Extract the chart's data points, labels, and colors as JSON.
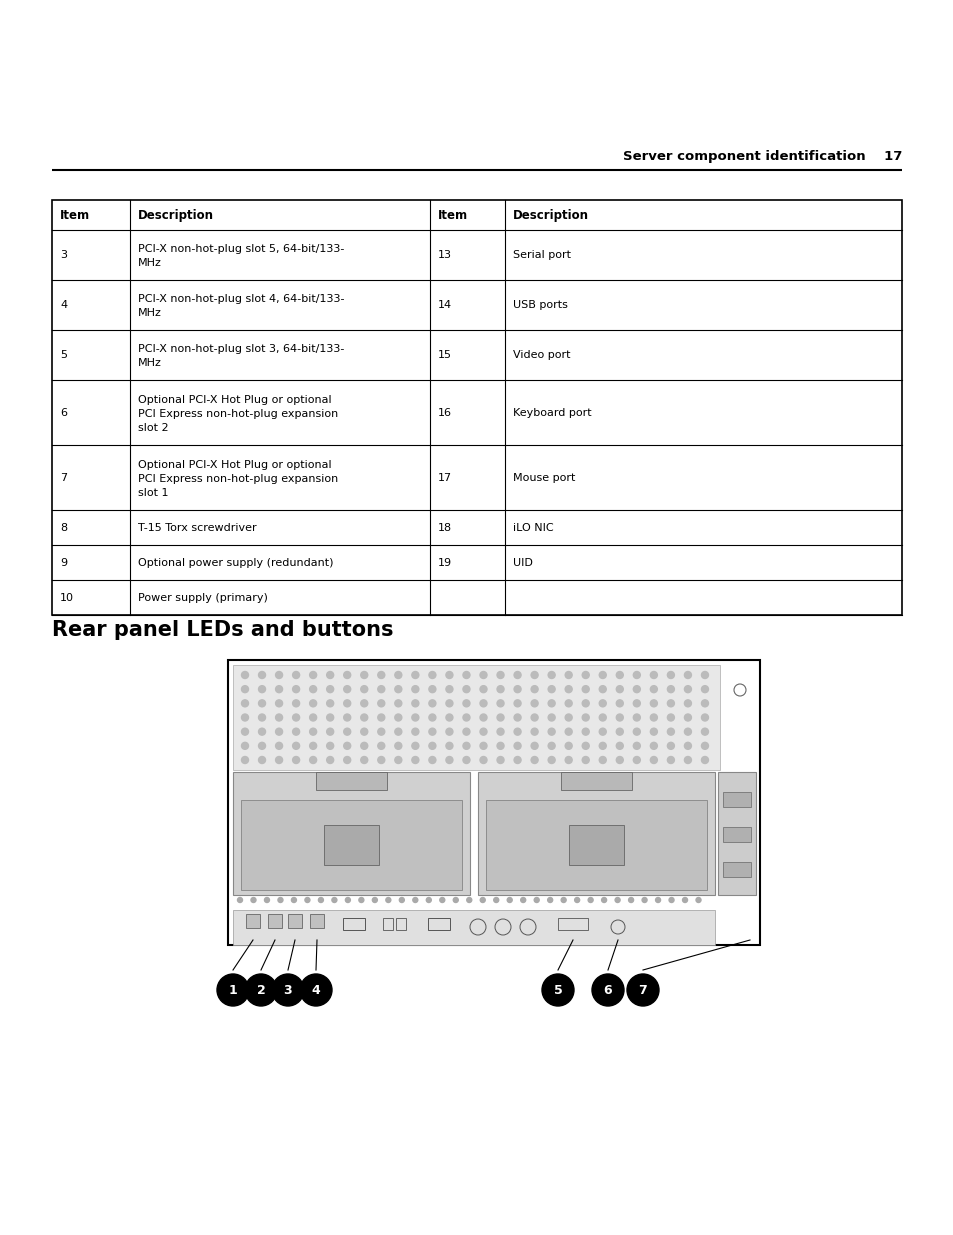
{
  "page_header_text": "Server component identification",
  "page_number": "17",
  "bg_color": "#ffffff",
  "text_color": "#000000",
  "header_font_size": 8.5,
  "body_font_size": 8.0,
  "section_title_font_size": 15,
  "table_header": [
    "Item",
    "Description",
    "Item",
    "Description"
  ],
  "table_rows": [
    [
      "3",
      "PCI-X non-hot-plug slot 5, 64-bit/133-\nMHz",
      "13",
      "Serial port"
    ],
    [
      "4",
      "PCI-X non-hot-plug slot 4, 64-bit/133-\nMHz",
      "14",
      "USB ports"
    ],
    [
      "5",
      "PCI-X non-hot-plug slot 3, 64-bit/133-\nMHz",
      "15",
      "Video port"
    ],
    [
      "6",
      "Optional PCI-X Hot Plug or optional\nPCI Express non-hot-plug expansion\nslot 2",
      "16",
      "Keyboard port"
    ],
    [
      "7",
      "Optional PCI-X Hot Plug or optional\nPCI Express non-hot-plug expansion\nslot 1",
      "17",
      "Mouse port"
    ],
    [
      "8",
      "T-15 Torx screwdriver",
      "18",
      "iLO NIC"
    ],
    [
      "9",
      "Optional power supply (redundant)",
      "19",
      "UID"
    ],
    [
      "10",
      "Power supply (primary)",
      "",
      ""
    ]
  ],
  "section_title": "Rear panel LEDs and buttons",
  "callout_labels_left": [
    "1",
    "2",
    "3",
    "4"
  ],
  "callout_labels_right": [
    "5",
    "6",
    "7"
  ]
}
